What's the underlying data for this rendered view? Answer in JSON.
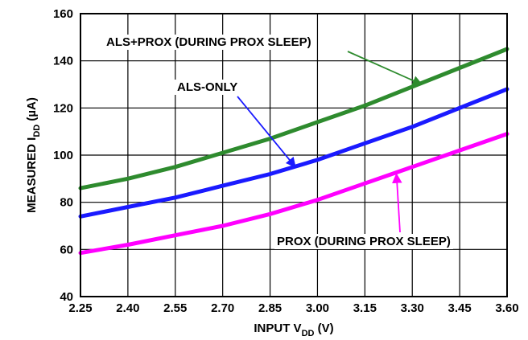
{
  "chart_data": {
    "type": "line",
    "xlabel_main": "INPUT V",
    "xlabel_sub": "DD",
    "xlabel_unit": " (V)",
    "ylabel_main": "MEASURED I",
    "ylabel_sub": "DD",
    "ylabel_unit": " (µA)",
    "xlim": [
      2.25,
      3.6
    ],
    "ylim": [
      40,
      160
    ],
    "grid": true,
    "x_ticks": [
      "2.25",
      "2.40",
      "2.55",
      "2.70",
      "2.85",
      "3.00",
      "3.15",
      "3.30",
      "3.45",
      "3.60"
    ],
    "y_ticks": [
      "40",
      "60",
      "80",
      "100",
      "120",
      "140",
      "160"
    ],
    "series": [
      {
        "name": "ALS+PROX (DURING PROX SLEEP)",
        "color": "#2e8b2e",
        "x": [
          2.25,
          2.4,
          2.55,
          2.7,
          2.85,
          3.0,
          3.15,
          3.3,
          3.45,
          3.6
        ],
        "y": [
          86,
          90,
          95,
          101,
          107,
          114,
          121,
          129,
          137,
          145
        ]
      },
      {
        "name": "ALS-ONLY",
        "color": "#1a1aff",
        "x": [
          2.25,
          2.4,
          2.55,
          2.7,
          2.85,
          3.0,
          3.15,
          3.3,
          3.45,
          3.6
        ],
        "y": [
          74,
          78,
          82,
          87,
          92,
          98,
          105,
          112,
          120,
          128
        ]
      },
      {
        "name": "PROX (DURING PROX SLEEP)",
        "color": "#ff00ff",
        "x": [
          2.25,
          2.4,
          2.55,
          2.7,
          2.85,
          3.0,
          3.15,
          3.3,
          3.45,
          3.6
        ],
        "y": [
          58.5,
          62,
          66,
          70,
          75,
          81,
          88,
          95,
          102,
          109
        ]
      }
    ],
    "annotations": [
      {
        "text": "ALS+PROX (DURING PROX SLEEP)",
        "arrow_color": "#2e8b2e",
        "points_to": [
          3.33,
          130
        ]
      },
      {
        "text": "ALS-ONLY",
        "arrow_color": "#1a1aff",
        "points_to": [
          2.93,
          95
        ]
      },
      {
        "text": "PROX (DURING PROX SLEEP)",
        "arrow_color": "#ff00ff",
        "points_to": [
          3.25,
          92
        ]
      }
    ]
  }
}
